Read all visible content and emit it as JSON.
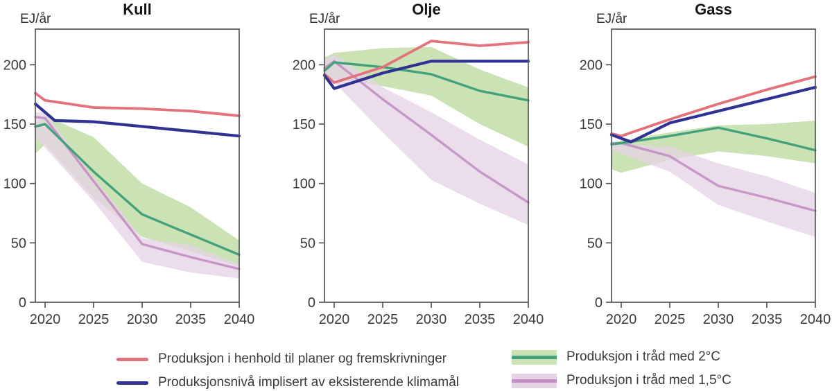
{
  "figure": {
    "y_axis_label": "EJ/år",
    "y_ticks": [
      0,
      50,
      100,
      150,
      200
    ],
    "x_ticks": [
      2020,
      2025,
      2030,
      2035,
      2040
    ],
    "xlim": [
      2019,
      2040
    ],
    "ylim": [
      0,
      230
    ]
  },
  "colors": {
    "red": "#e2737c",
    "blue": "#2f3293",
    "green": "#44a17c",
    "green_band": "#cbe3b4",
    "purple": "#c48fc3",
    "purple_band": "#e5d3e6",
    "axis": "#55565a",
    "tick_text": "#3a3a3c"
  },
  "chart_data": [
    {
      "type": "line",
      "title": "Kull",
      "ylabel": "EJ/år",
      "xlim": [
        2019,
        2040
      ],
      "ylim": [
        0,
        230
      ],
      "x_ticks": [
        2020,
        2025,
        2030,
        2035,
        2040
      ],
      "y_ticks": [
        0,
        50,
        100,
        150,
        200
      ],
      "series": [
        {
          "name": "Produksjon i henhold til planer og fremskrivninger",
          "color_key": "red",
          "x": [
            2019,
            2020,
            2025,
            2030,
            2035,
            2040
          ],
          "y": [
            176,
            170,
            164,
            163,
            161,
            157
          ]
        },
        {
          "name": "Produksjonsnivå implisert av eksisterende klimamål",
          "color_key": "blue",
          "x": [
            2019,
            2021,
            2025,
            2030,
            2035,
            2040
          ],
          "y": [
            167,
            153,
            152,
            148,
            144,
            140
          ]
        },
        {
          "name": "Produksjon i tråd med 2°C",
          "color_key": "green",
          "x": [
            2019,
            2020,
            2025,
            2030,
            2035,
            2040
          ],
          "y": [
            148,
            150,
            110,
            74,
            57,
            40
          ],
          "band": {
            "x": [
              2019,
              2020,
              2025,
              2030,
              2035,
              2040
            ],
            "hi": [
              151,
              157,
              139,
              100,
              80,
              52
            ],
            "lo": [
              125,
              133,
              88,
              55,
              43,
              30
            ]
          }
        },
        {
          "name": "Produksjon i tråd med 1,5°C",
          "color_key": "purple",
          "x": [
            2019,
            2020,
            2025,
            2030,
            2035,
            2040
          ],
          "y": [
            156,
            155,
            102,
            49,
            38,
            28
          ],
          "band": {
            "x": [
              2019,
              2020,
              2025,
              2030,
              2035,
              2040
            ],
            "hi": [
              160,
              160,
              105,
              54,
              48,
              32
            ],
            "lo": [
              139,
              130,
              85,
              34,
              25,
              20
            ]
          }
        }
      ]
    },
    {
      "type": "line",
      "title": "Olje",
      "ylabel": "EJ/år",
      "xlim": [
        2019,
        2040
      ],
      "ylim": [
        0,
        230
      ],
      "x_ticks": [
        2020,
        2025,
        2030,
        2035,
        2040
      ],
      "y_ticks": [
        0,
        50,
        100,
        150,
        200
      ],
      "series": [
        {
          "name": "Produksjon i henhold til planer og fremskrivninger",
          "color_key": "red",
          "x": [
            2019,
            2020,
            2025,
            2030,
            2035,
            2040
          ],
          "y": [
            192,
            185,
            198,
            220,
            216,
            219
          ]
        },
        {
          "name": "Produksjonsnivå implisert av eksisterende klimamål",
          "color_key": "blue",
          "x": [
            2019,
            2020,
            2025,
            2030,
            2035,
            2040
          ],
          "y": [
            191,
            180,
            193,
            203,
            203,
            203
          ]
        },
        {
          "name": "Produksjon i tråd med 2°C",
          "color_key": "green",
          "x": [
            2019,
            2020,
            2025,
            2030,
            2035,
            2040
          ],
          "y": [
            195,
            202,
            198,
            192,
            178,
            170
          ],
          "band": {
            "x": [
              2019,
              2020,
              2025,
              2030,
              2035,
              2040
            ],
            "hi": [
              206,
              210,
              214,
              215,
              196,
              181
            ],
            "lo": [
              190,
              188,
              182,
              174,
              150,
              131
            ]
          }
        },
        {
          "name": "Produksjon i tråd med 1,5°C",
          "color_key": "purple",
          "x": [
            2019,
            2020,
            2025,
            2030,
            2035,
            2040
          ],
          "y": [
            197,
            203,
            171,
            141,
            110,
            84
          ],
          "band": {
            "x": [
              2019,
              2020,
              2025,
              2030,
              2035,
              2040
            ],
            "hi": [
              204,
              209,
              181,
              160,
              137,
              116
            ],
            "lo": [
              191,
              185,
              143,
              103,
              83,
              65
            ]
          }
        }
      ]
    },
    {
      "type": "line",
      "title": "Gass",
      "ylabel": "EJ/år",
      "xlim": [
        2019,
        2040
      ],
      "ylim": [
        0,
        230
      ],
      "x_ticks": [
        2020,
        2025,
        2030,
        2035,
        2040
      ],
      "y_ticks": [
        0,
        50,
        100,
        150,
        200
      ],
      "series": [
        {
          "name": "Produksjon i henhold til planer og fremskrivninger",
          "color_key": "red",
          "x": [
            2019,
            2020,
            2025,
            2030,
            2035,
            2040
          ],
          "y": [
            142,
            140,
            154,
            167,
            179,
            190
          ]
        },
        {
          "name": "Produksjonsnivå implisert av eksisterende klimamål",
          "color_key": "blue",
          "x": [
            2019,
            2021,
            2025,
            2030,
            2035,
            2040
          ],
          "y": [
            141,
            135,
            151,
            161,
            171,
            181
          ]
        },
        {
          "name": "Produksjon i tråd med 2°C",
          "color_key": "green",
          "x": [
            2019,
            2020,
            2025,
            2030,
            2035,
            2040
          ],
          "y": [
            133,
            134,
            140,
            147,
            138,
            128
          ],
          "band": {
            "x": [
              2019,
              2020,
              2025,
              2030,
              2035,
              2040
            ],
            "hi": [
              134,
              136,
              143,
              149,
              150,
              153
            ],
            "lo": [
              112,
              109,
              120,
              127,
              123,
              117
            ]
          }
        },
        {
          "name": "Produksjon i tråd med 1,5°C",
          "color_key": "purple",
          "x": [
            2019,
            2020,
            2025,
            2030,
            2035,
            2040
          ],
          "y": [
            134,
            134,
            123,
            98,
            88,
            77
          ],
          "band": {
            "x": [
              2019,
              2020,
              2025,
              2030,
              2035,
              2040
            ],
            "hi": [
              134,
              133,
              131,
              117,
              106,
              92
            ],
            "lo": [
              128,
              125,
              110,
              82,
              68,
              55
            ]
          }
        }
      ]
    }
  ],
  "legend": {
    "items": [
      {
        "label": "Produksjon i henhold til planer og fremskrivninger",
        "swatch": "line",
        "color_key": "red"
      },
      {
        "label": "Produksjonsnivå implisert av eksisterende klimamål",
        "swatch": "line",
        "color_key": "blue"
      },
      {
        "label": "Produksjon i tråd med 2°C",
        "swatch": "band",
        "color_key": "green"
      },
      {
        "label": "Produksjon i tråd med 1,5°C",
        "swatch": "band",
        "color_key": "purple"
      }
    ]
  }
}
